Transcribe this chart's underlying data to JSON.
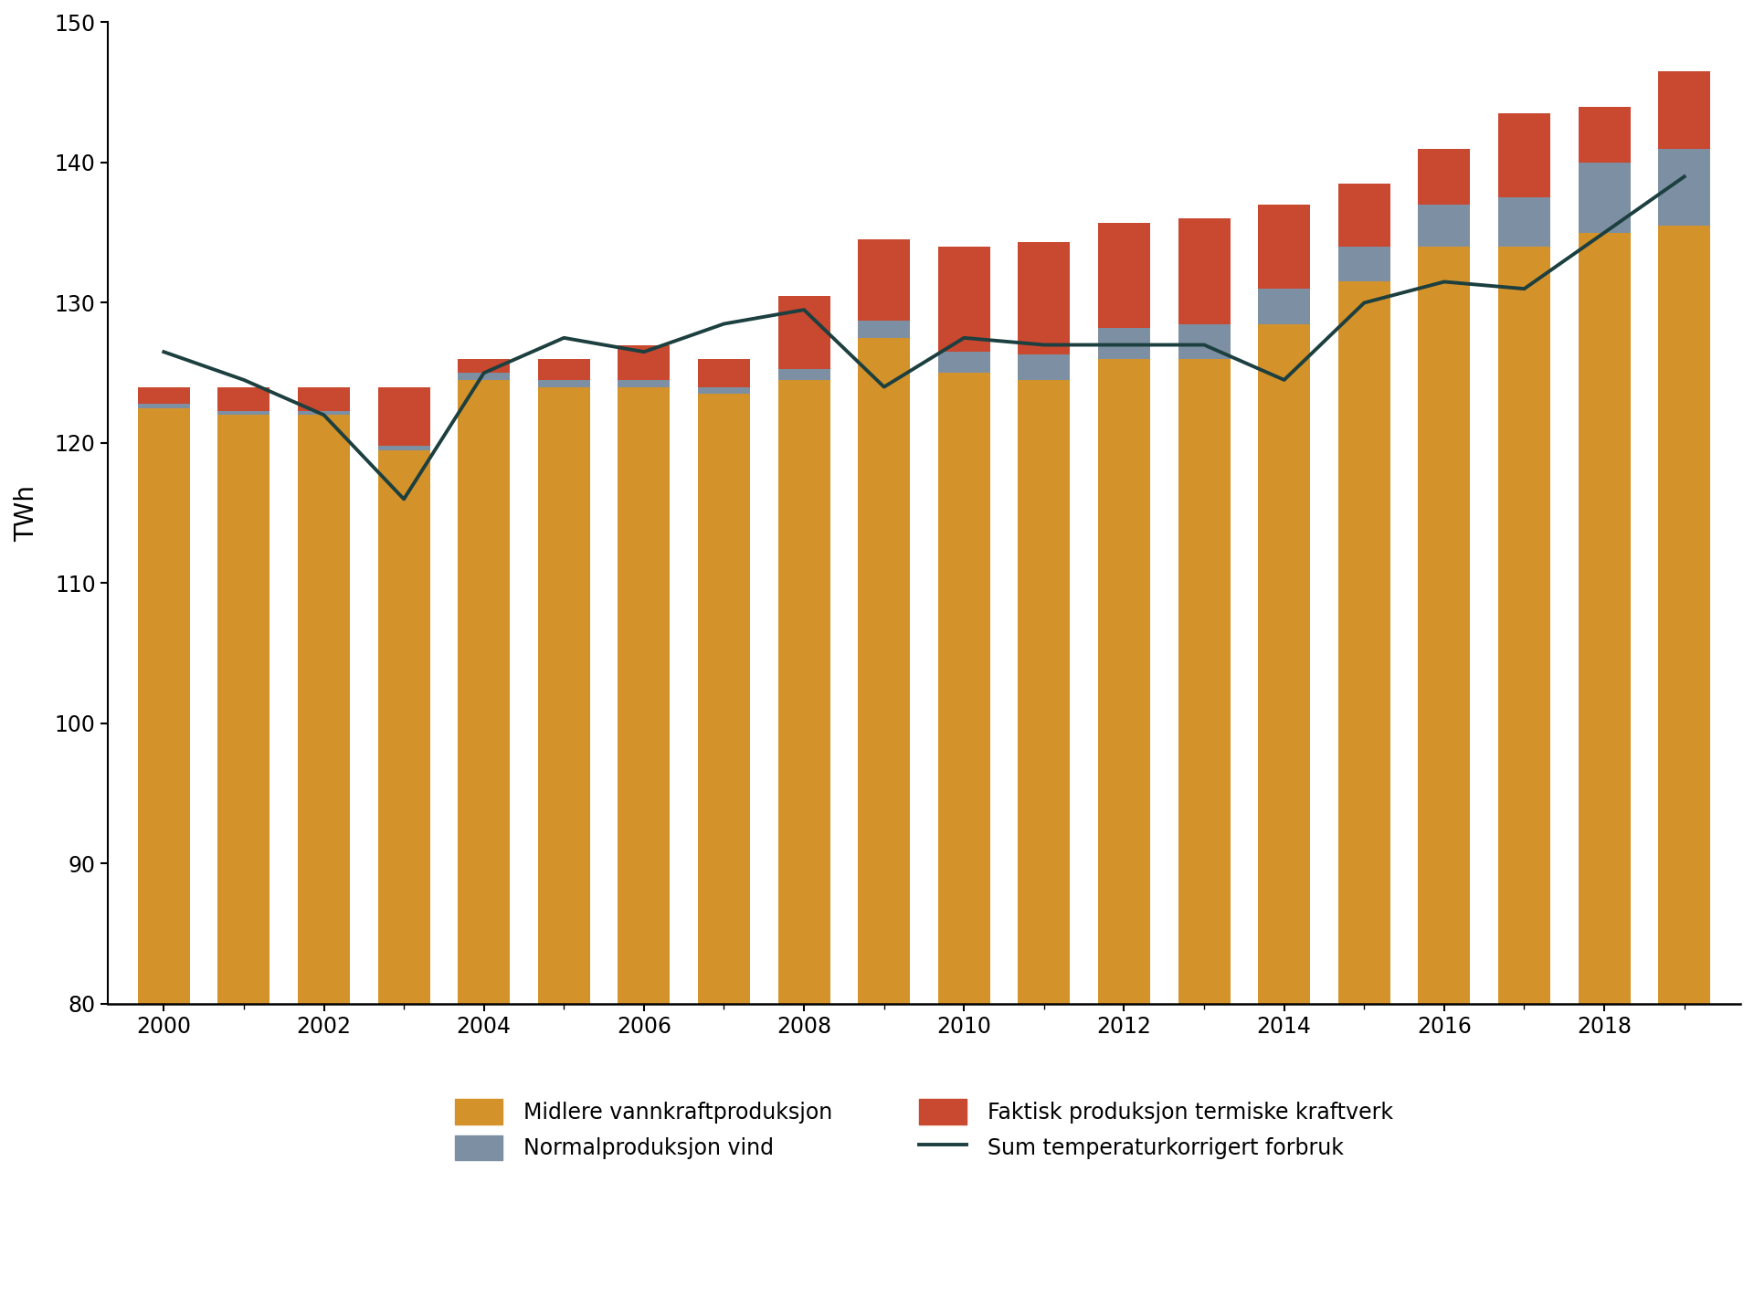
{
  "years": [
    2000,
    2001,
    2002,
    2003,
    2004,
    2005,
    2006,
    2007,
    2008,
    2009,
    2010,
    2011,
    2012,
    2013,
    2014,
    2015,
    2016,
    2017,
    2018,
    2019
  ],
  "vannkraft": [
    122.5,
    122.0,
    122.0,
    119.5,
    124.5,
    124.0,
    124.0,
    123.5,
    124.5,
    127.5,
    125.0,
    124.5,
    126.0,
    126.0,
    128.5,
    131.5,
    134.0,
    134.0,
    135.0,
    135.5
  ],
  "vind": [
    0.3,
    0.3,
    0.3,
    0.3,
    0.5,
    0.5,
    0.5,
    0.5,
    0.8,
    1.2,
    1.5,
    1.8,
    2.2,
    2.5,
    2.5,
    2.5,
    3.0,
    3.5,
    5.0,
    5.5
  ],
  "termisk": [
    1.2,
    1.7,
    1.7,
    4.2,
    1.0,
    1.5,
    2.5,
    2.0,
    5.2,
    5.8,
    7.5,
    8.0,
    7.5,
    7.5,
    6.0,
    4.5,
    4.0,
    6.0,
    4.0,
    5.5
  ],
  "forbruk": [
    126.5,
    124.5,
    122.0,
    116.0,
    125.0,
    127.5,
    126.5,
    128.5,
    129.5,
    124.0,
    127.5,
    127.0,
    127.0,
    127.0,
    124.5,
    130.0,
    131.5,
    131.0,
    135.0,
    139.0
  ],
  "color_vannkraft": "#D4922A",
  "color_vind": "#7D90A3",
  "color_termisk": "#C94830",
  "color_forbruk": "#1C3F3F",
  "ylabel": "TWh",
  "ylim": [
    80,
    150
  ],
  "yticks": [
    80,
    90,
    100,
    110,
    120,
    130,
    140,
    150
  ],
  "legend_vannkraft": "Midlere vannkraftproduksjon",
  "legend_vind": "Normalproduksjon vind",
  "legend_termisk": "Faktisk produksjon termiske kraftverk",
  "legend_forbruk": "Sum temperaturkorrigert forbruk",
  "bar_width": 0.65
}
